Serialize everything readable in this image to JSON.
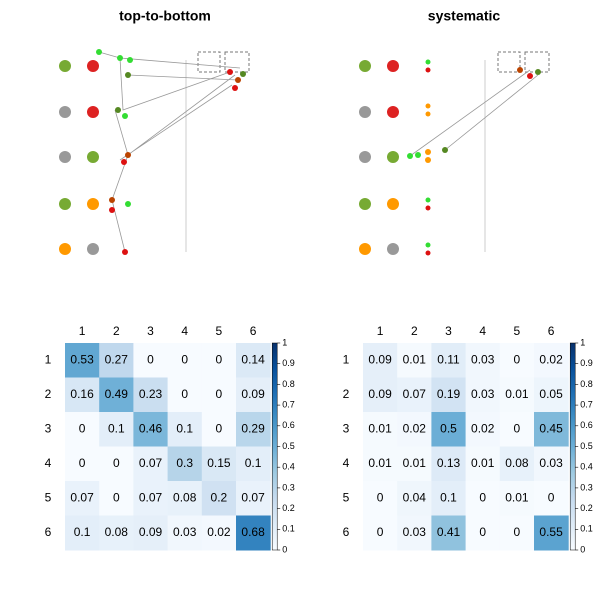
{
  "panels": [
    {
      "title": "top-to-bottom"
    },
    {
      "title": "systematic"
    }
  ],
  "chart_data": [
    {
      "type": "heatmap",
      "x": [
        "1",
        "2",
        "3",
        "4",
        "5",
        "6"
      ],
      "y": [
        "1",
        "2",
        "3",
        "4",
        "5",
        "6"
      ],
      "values": [
        [
          0.53,
          0.27,
          0,
          0,
          0,
          0.14
        ],
        [
          0.16,
          0.49,
          0.23,
          0,
          0,
          0.09
        ],
        [
          0,
          0.1,
          0.46,
          0.1,
          0,
          0.29
        ],
        [
          0,
          0,
          0.07,
          0.3,
          0.15,
          0.1
        ],
        [
          0.07,
          0,
          0.07,
          0.08,
          0.2,
          0.07
        ],
        [
          0.1,
          0.08,
          0.09,
          0.03,
          0.02,
          0.68
        ]
      ],
      "clim": [
        0,
        1
      ],
      "cticks": [
        0,
        0.1,
        0.2,
        0.3,
        0.4,
        0.5,
        0.6,
        0.7,
        0.8,
        0.9,
        1
      ],
      "colors": [
        "#f7fbff",
        "#deebf7",
        "#c6dbef",
        "#9ecae1",
        "#6baed6",
        "#4292c6",
        "#2171b5",
        "#08519c",
        "#08306b"
      ]
    },
    {
      "type": "heatmap",
      "x": [
        "1",
        "2",
        "3",
        "4",
        "5",
        "6"
      ],
      "y": [
        "1",
        "2",
        "3",
        "4",
        "5",
        "6"
      ],
      "values": [
        [
          0.09,
          0.01,
          0.11,
          0.03,
          0,
          0.02
        ],
        [
          0.09,
          0.07,
          0.19,
          0.03,
          0.01,
          0.05
        ],
        [
          0.01,
          0.02,
          0.5,
          0.02,
          0,
          0.45
        ],
        [
          0.01,
          0.01,
          0.13,
          0.01,
          0.08,
          0.03
        ],
        [
          0,
          0.04,
          0.1,
          0,
          0.01,
          0
        ],
        [
          0,
          0.03,
          0.41,
          0,
          0,
          0.55
        ]
      ],
      "clim": [
        0,
        1
      ],
      "cticks": [
        0,
        0.1,
        0.2,
        0.3,
        0.4,
        0.5,
        0.6,
        0.7,
        0.8,
        0.9,
        1
      ],
      "colors": [
        "#f7fbff",
        "#deebf7",
        "#c6dbef",
        "#9ecae1",
        "#6baed6",
        "#4292c6",
        "#2171b5",
        "#08519c",
        "#08306b"
      ]
    }
  ]
}
